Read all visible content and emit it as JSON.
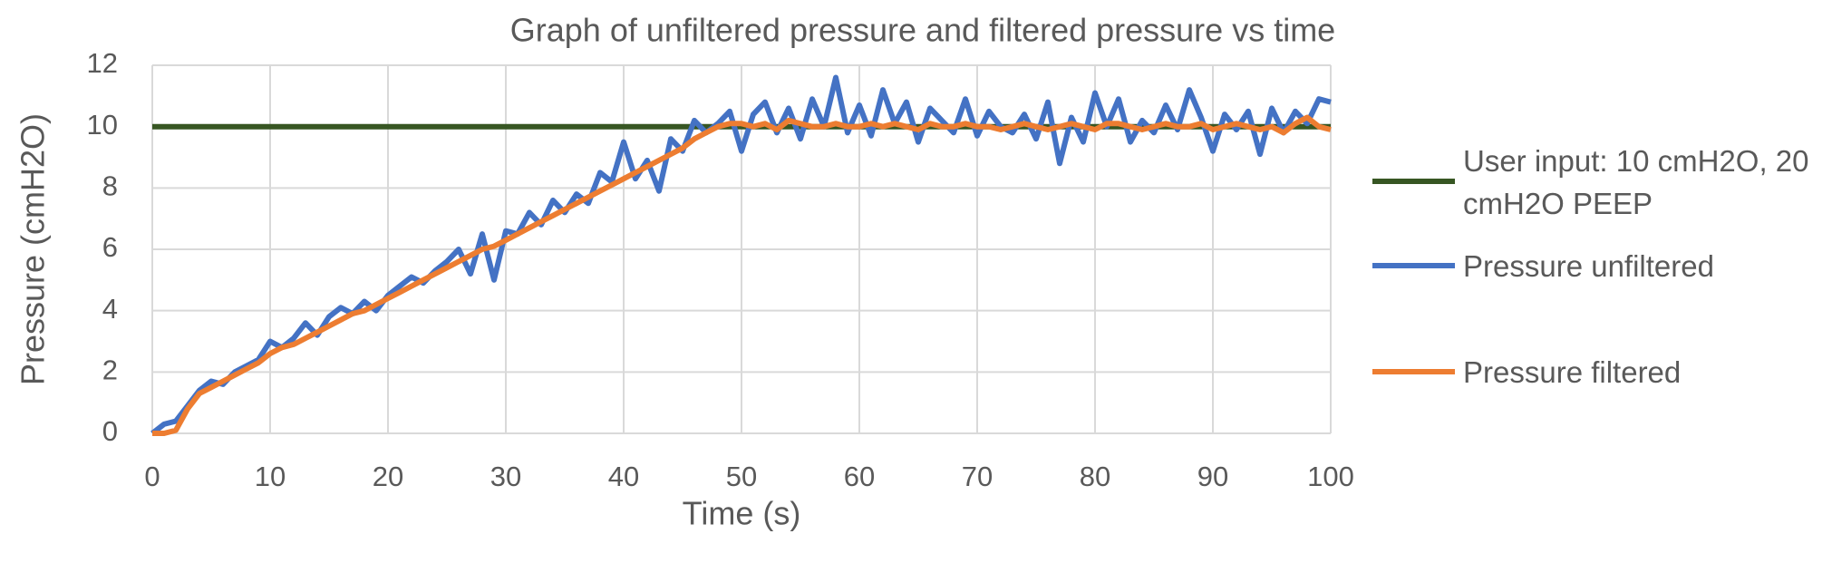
{
  "chart_data": {
    "type": "line",
    "title": "Graph of unfiltered pressure and filtered pressure vs time",
    "x_label": "Time (s)",
    "y_label": "Pressure (cmH2O)",
    "xlim": [
      0,
      100
    ],
    "xticks": [
      0,
      10,
      20,
      30,
      40,
      50,
      60,
      70,
      80,
      90,
      100
    ],
    "ylim": [
      0,
      12
    ],
    "yticks": [
      0,
      2,
      4,
      6,
      8,
      10,
      12
    ],
    "grid": true,
    "legend": "right",
    "series": [
      {
        "name": "User input: 10 cmH2O, 20 cmH2O PEEP",
        "color": "#375623",
        "x": [
          0,
          100
        ],
        "values": [
          10,
          10
        ]
      },
      {
        "name": "Pressure unfiltered",
        "color": "#4472c4",
        "x": [
          0,
          1,
          2,
          3,
          4,
          5,
          6,
          7,
          8,
          9,
          10,
          11,
          12,
          13,
          14,
          15,
          16,
          17,
          18,
          19,
          20,
          21,
          22,
          23,
          24,
          25,
          26,
          27,
          28,
          29,
          30,
          31,
          32,
          33,
          34,
          35,
          36,
          37,
          38,
          39,
          40,
          41,
          42,
          43,
          44,
          45,
          46,
          47,
          48,
          49,
          50,
          51,
          52,
          53,
          54,
          55,
          56,
          57,
          58,
          59,
          60,
          61,
          62,
          63,
          64,
          65,
          66,
          67,
          68,
          69,
          70,
          71,
          72,
          73,
          74,
          75,
          76,
          77,
          78,
          79,
          80,
          81,
          82,
          83,
          84,
          85,
          86,
          87,
          88,
          89,
          90,
          91,
          92,
          93,
          94,
          95,
          96,
          97,
          98,
          99,
          100
        ],
        "values": [
          0,
          0.3,
          0.4,
          0.9,
          1.4,
          1.7,
          1.6,
          2.0,
          2.2,
          2.4,
          3.0,
          2.8,
          3.1,
          3.6,
          3.2,
          3.8,
          4.1,
          3.9,
          4.3,
          4.0,
          4.5,
          4.8,
          5.1,
          4.9,
          5.3,
          5.6,
          6.0,
          5.2,
          6.5,
          5.0,
          6.6,
          6.5,
          7.2,
          6.8,
          7.6,
          7.2,
          7.8,
          7.5,
          8.5,
          8.2,
          9.5,
          8.3,
          8.9,
          7.9,
          9.6,
          9.2,
          10.2,
          9.8,
          10.1,
          10.5,
          9.2,
          10.4,
          10.8,
          9.8,
          10.6,
          9.6,
          10.9,
          10.0,
          11.6,
          9.8,
          10.7,
          9.7,
          11.2,
          10.1,
          10.8,
          9.5,
          10.6,
          10.2,
          9.8,
          10.9,
          9.7,
          10.5,
          10.0,
          9.8,
          10.4,
          9.6,
          10.8,
          8.8,
          10.3,
          9.5,
          11.1,
          10.0,
          10.9,
          9.5,
          10.2,
          9.8,
          10.7,
          9.9,
          11.2,
          10.3,
          9.2,
          10.4,
          9.9,
          10.5,
          9.1,
          10.6,
          9.8,
          10.5,
          10.1,
          10.9,
          10.8
        ]
      },
      {
        "name": "Pressure filtered",
        "color": "#ed7d31",
        "x": [
          0,
          1,
          2,
          3,
          4,
          5,
          6,
          7,
          8,
          9,
          10,
          11,
          12,
          13,
          14,
          15,
          16,
          17,
          18,
          19,
          20,
          21,
          22,
          23,
          24,
          25,
          26,
          27,
          28,
          29,
          30,
          31,
          32,
          33,
          34,
          35,
          36,
          37,
          38,
          39,
          40,
          41,
          42,
          43,
          44,
          45,
          46,
          47,
          48,
          49,
          50,
          51,
          52,
          53,
          54,
          55,
          56,
          57,
          58,
          59,
          60,
          61,
          62,
          63,
          64,
          65,
          66,
          67,
          68,
          69,
          70,
          71,
          72,
          73,
          74,
          75,
          76,
          77,
          78,
          79,
          80,
          81,
          82,
          83,
          84,
          85,
          86,
          87,
          88,
          89,
          90,
          91,
          92,
          93,
          94,
          95,
          96,
          97,
          98,
          99,
          100
        ],
        "values": [
          0,
          0,
          0.1,
          0.8,
          1.3,
          1.5,
          1.7,
          1.9,
          2.1,
          2.3,
          2.6,
          2.8,
          2.9,
          3.1,
          3.3,
          3.5,
          3.7,
          3.9,
          4.0,
          4.2,
          4.4,
          4.6,
          4.8,
          5.0,
          5.2,
          5.4,
          5.6,
          5.8,
          6.0,
          6.1,
          6.3,
          6.5,
          6.7,
          6.9,
          7.1,
          7.3,
          7.5,
          7.7,
          7.9,
          8.1,
          8.3,
          8.5,
          8.7,
          8.9,
          9.1,
          9.3,
          9.6,
          9.8,
          10.0,
          10.1,
          10.1,
          10.0,
          10.1,
          9.9,
          10.2,
          10.1,
          10.0,
          10.0,
          10.1,
          10.0,
          10.0,
          10.1,
          10.0,
          10.1,
          10.0,
          9.9,
          10.1,
          10.0,
          10.0,
          10.1,
          10.0,
          10.0,
          9.9,
          10.0,
          10.1,
          10.0,
          9.9,
          10.0,
          10.1,
          10.0,
          9.9,
          10.1,
          10.1,
          10.0,
          9.9,
          10.0,
          10.1,
          10.0,
          10.0,
          10.1,
          9.9,
          10.0,
          10.1,
          10.0,
          9.9,
          10.0,
          9.8,
          10.1,
          10.3,
          10.0,
          9.9
        ]
      }
    ]
  }
}
